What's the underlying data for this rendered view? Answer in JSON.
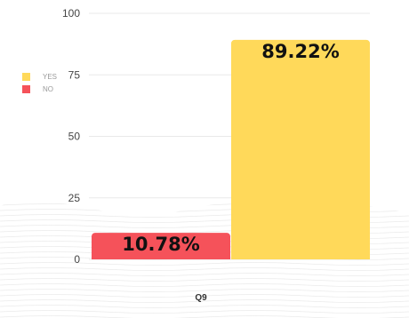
{
  "chart_data": {
    "type": "bar",
    "categories": [
      "Q9"
    ],
    "series": [
      {
        "name": "YES",
        "values": [
          89.22
        ],
        "label": "89.22%",
        "color": "#FFD95A"
      },
      {
        "name": "NO",
        "values": [
          10.78
        ],
        "label": "10.78%",
        "color": "#F5525A"
      }
    ],
    "y_ticks": [
      "0",
      "25",
      "50",
      "75",
      "100"
    ],
    "ylim": [
      0,
      100
    ],
    "grid": true,
    "legend_position": "left"
  }
}
